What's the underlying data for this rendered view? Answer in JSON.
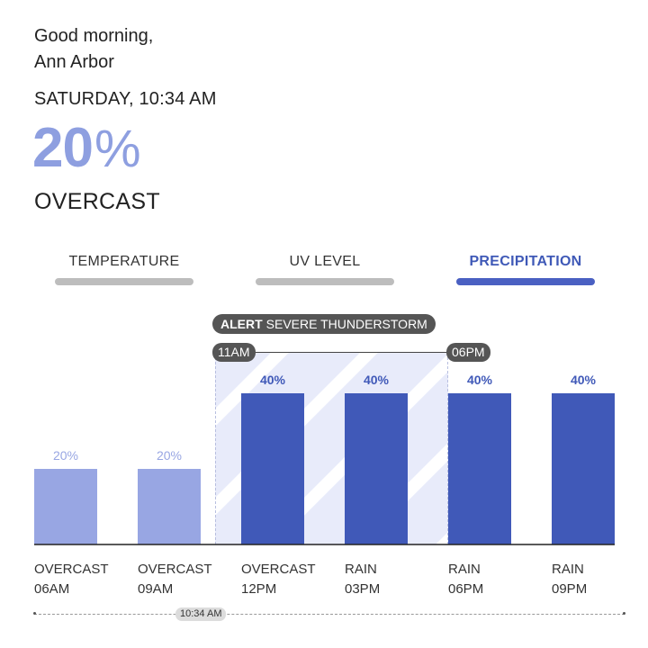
{
  "header": {
    "greeting_line1": "Good morning,",
    "greeting_line2": "Ann Arbor",
    "day_time": "SATURDAY, 10:34 AM",
    "current_value": "20",
    "current_unit": "%",
    "condition": "OVERCAST"
  },
  "tabs": [
    {
      "label": "TEMPERATURE",
      "active": false
    },
    {
      "label": "UV LEVEL",
      "active": false
    },
    {
      "label": "PRECIPITATION",
      "active": true
    }
  ],
  "alert": {
    "tag": "ALERT",
    "text": "SEVERE THUNDERSTORM",
    "start": "11AM",
    "end": "06PM"
  },
  "timeline": {
    "now_label": "10:34 AM"
  },
  "colors": {
    "accent": "#4059b8",
    "accent_light": "#98a6e3",
    "alert_band": "#e8ebfa",
    "pill": "#555555"
  },
  "chart_data": {
    "type": "bar",
    "categories": [
      "06AM",
      "09AM",
      "12PM",
      "03PM",
      "06PM",
      "09PM"
    ],
    "conditions": [
      "OVERCAST",
      "OVERCAST",
      "OVERCAST",
      "RAIN",
      "RAIN",
      "RAIN"
    ],
    "values": [
      20,
      20,
      40,
      40,
      40,
      40
    ],
    "value_labels": [
      "20%",
      "20%",
      "40%",
      "40%",
      "40%",
      "40%"
    ],
    "ylim": [
      0,
      50
    ],
    "highlight_after_index": 1
  }
}
